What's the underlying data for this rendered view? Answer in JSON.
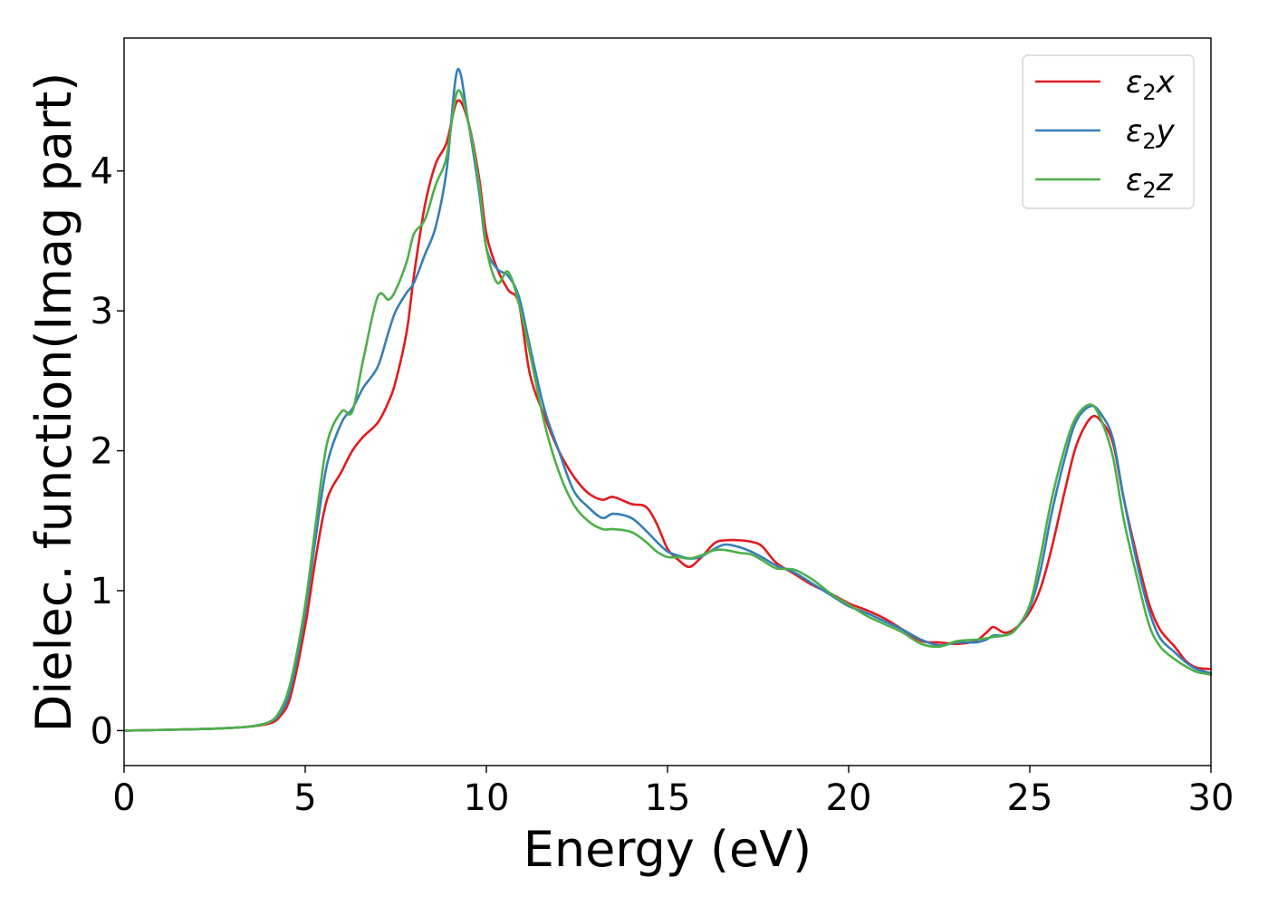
{
  "chart_data": {
    "type": "line",
    "xlabel": "Energy (eV)",
    "ylabel": "Dielec. function(Imag part)",
    "xlim": [
      0,
      30
    ],
    "ylim": [
      -0.25,
      4.95
    ],
    "xticks": [
      0,
      5,
      10,
      15,
      20,
      25,
      30
    ],
    "yticks": [
      0,
      1,
      2,
      3,
      4
    ],
    "grid": false,
    "legend_position": "top-right",
    "series": [
      {
        "name": "ε₂x",
        "legend_main": "ε",
        "legend_sub": "2",
        "legend_suffix": "x",
        "color": "#e41a1c",
        "x": [
          0,
          2,
          3,
          3.5,
          4,
          4.3,
          4.6,
          5,
          5.3,
          5.6,
          6,
          6.3,
          6.6,
          7,
          7.3,
          7.5,
          7.8,
          8,
          8.3,
          8.6,
          8.9,
          9.2,
          9.5,
          9.8,
          10,
          10.3,
          10.6,
          10.9,
          11.2,
          11.6,
          12,
          12.4,
          12.8,
          13.2,
          13.5,
          14,
          14.4,
          14.7,
          15,
          15.3,
          15.6,
          15.9,
          16.3,
          16.6,
          17,
          17.3,
          17.6,
          18,
          18.5,
          19,
          19.5,
          20,
          20.5,
          21,
          21.5,
          22,
          22.5,
          23,
          23.5,
          23.8,
          24,
          24.3,
          24.6,
          25,
          25.3,
          25.6,
          26,
          26.3,
          26.7,
          27,
          27.3,
          27.6,
          28,
          28.3,
          28.6,
          29,
          29.3,
          29.6,
          30
        ],
        "y": [
          0,
          0.01,
          0.02,
          0.03,
          0.05,
          0.1,
          0.25,
          0.75,
          1.25,
          1.65,
          1.85,
          2.0,
          2.1,
          2.2,
          2.35,
          2.5,
          2.85,
          3.25,
          3.75,
          4.05,
          4.2,
          4.5,
          4.35,
          3.95,
          3.55,
          3.3,
          3.15,
          3.05,
          2.55,
          2.25,
          2.0,
          1.82,
          1.7,
          1.65,
          1.67,
          1.62,
          1.6,
          1.48,
          1.3,
          1.22,
          1.17,
          1.23,
          1.34,
          1.36,
          1.36,
          1.35,
          1.32,
          1.2,
          1.12,
          1.04,
          0.98,
          0.91,
          0.86,
          0.8,
          0.72,
          0.64,
          0.63,
          0.62,
          0.64,
          0.7,
          0.74,
          0.7,
          0.73,
          0.85,
          1.02,
          1.3,
          1.75,
          2.05,
          2.24,
          2.2,
          2.05,
          1.65,
          1.2,
          0.9,
          0.72,
          0.6,
          0.5,
          0.45,
          0.44
        ]
      },
      {
        "name": "ε₂y",
        "legend_main": "ε",
        "legend_sub": "2",
        "legend_suffix": "y",
        "color": "#377eb8",
        "x": [
          0,
          2,
          3,
          3.5,
          4,
          4.3,
          4.6,
          5,
          5.3,
          5.6,
          6,
          6.3,
          6.6,
          7,
          7.3,
          7.5,
          7.8,
          8,
          8.3,
          8.6,
          8.9,
          9.2,
          9.5,
          9.8,
          10,
          10.3,
          10.6,
          10.9,
          11.2,
          11.6,
          12,
          12.4,
          12.8,
          13.2,
          13.5,
          14,
          14.4,
          14.7,
          15,
          15.3,
          15.6,
          15.9,
          16.3,
          16.6,
          17,
          17.3,
          17.6,
          18,
          18.5,
          19,
          19.5,
          20,
          20.5,
          21,
          21.5,
          22,
          22.5,
          23,
          23.5,
          23.8,
          24,
          24.3,
          24.6,
          25,
          25.3,
          25.6,
          26,
          26.3,
          26.7,
          27,
          27.3,
          27.6,
          28,
          28.3,
          28.6,
          29,
          29.3,
          29.6,
          30
        ],
        "y": [
          0,
          0.01,
          0.02,
          0.03,
          0.06,
          0.12,
          0.3,
          0.85,
          1.4,
          1.9,
          2.2,
          2.3,
          2.45,
          2.6,
          2.85,
          3.0,
          3.13,
          3.2,
          3.4,
          3.6,
          4.0,
          4.72,
          4.35,
          3.85,
          3.45,
          3.3,
          3.25,
          3.1,
          2.75,
          2.3,
          2.0,
          1.72,
          1.6,
          1.52,
          1.55,
          1.52,
          1.43,
          1.35,
          1.28,
          1.25,
          1.23,
          1.24,
          1.3,
          1.33,
          1.31,
          1.28,
          1.24,
          1.18,
          1.13,
          1.05,
          0.97,
          0.89,
          0.84,
          0.78,
          0.72,
          0.65,
          0.61,
          0.63,
          0.63,
          0.65,
          0.68,
          0.68,
          0.72,
          0.88,
          1.15,
          1.55,
          1.98,
          2.22,
          2.32,
          2.25,
          2.08,
          1.65,
          1.15,
          0.85,
          0.66,
          0.56,
          0.49,
          0.44,
          0.41
        ]
      },
      {
        "name": "ε₂z",
        "legend_main": "ε",
        "legend_sub": "2",
        "legend_suffix": "z",
        "color": "#4daf4a",
        "x": [
          0,
          2,
          3,
          3.5,
          4,
          4.3,
          4.6,
          5,
          5.3,
          5.6,
          6,
          6.3,
          6.6,
          7,
          7.3,
          7.5,
          7.8,
          8,
          8.3,
          8.6,
          8.9,
          9.2,
          9.5,
          9.8,
          10,
          10.3,
          10.6,
          10.9,
          11.2,
          11.6,
          12,
          12.4,
          12.8,
          13.2,
          13.5,
          14,
          14.4,
          14.7,
          15,
          15.3,
          15.6,
          15.9,
          16.3,
          16.6,
          17,
          17.3,
          17.6,
          18,
          18.5,
          19,
          19.5,
          20,
          20.5,
          21,
          21.5,
          22,
          22.5,
          23,
          23.5,
          23.8,
          24,
          24.3,
          24.6,
          25,
          25.3,
          25.6,
          26,
          26.3,
          26.7,
          27,
          27.3,
          27.6,
          28,
          28.3,
          28.6,
          29,
          29.3,
          29.6,
          30
        ],
        "y": [
          0,
          0.01,
          0.02,
          0.03,
          0.06,
          0.14,
          0.35,
          0.9,
          1.5,
          2.05,
          2.28,
          2.28,
          2.65,
          3.1,
          3.08,
          3.15,
          3.35,
          3.55,
          3.65,
          3.9,
          4.1,
          4.57,
          4.35,
          3.9,
          3.45,
          3.2,
          3.28,
          3.05,
          2.7,
          2.2,
          1.85,
          1.62,
          1.5,
          1.44,
          1.44,
          1.42,
          1.35,
          1.28,
          1.24,
          1.24,
          1.23,
          1.25,
          1.29,
          1.29,
          1.27,
          1.26,
          1.22,
          1.16,
          1.15,
          1.08,
          0.98,
          0.9,
          0.82,
          0.76,
          0.7,
          0.62,
          0.6,
          0.64,
          0.65,
          0.66,
          0.67,
          0.68,
          0.72,
          0.9,
          1.25,
          1.65,
          2.05,
          2.25,
          2.33,
          2.2,
          1.95,
          1.5,
          1.05,
          0.75,
          0.6,
          0.51,
          0.46,
          0.42,
          0.4
        ]
      }
    ]
  }
}
